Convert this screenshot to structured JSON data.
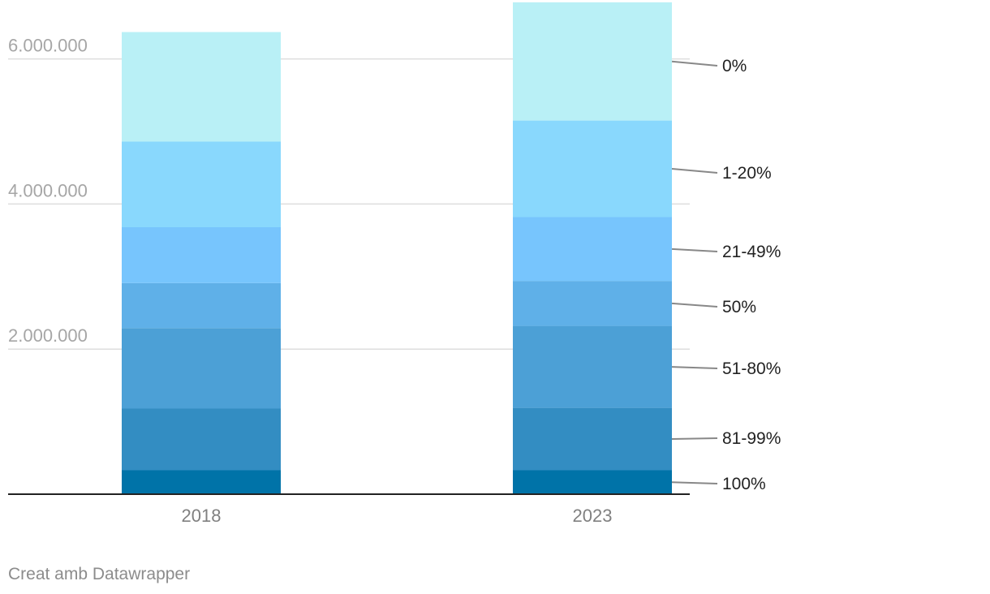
{
  "chart_data": {
    "type": "bar",
    "stacked": true,
    "categories": [
      "2018",
      "2023"
    ],
    "series": [
      {
        "name": "100%",
        "color": "#0073a8",
        "values": [
          330000,
          330000
        ]
      },
      {
        "name": "81-99%",
        "color": "#338dc2",
        "values": [
          850000,
          860000
        ]
      },
      {
        "name": "51-80%",
        "color": "#4ca0d6",
        "values": [
          1110000,
          1130000
        ]
      },
      {
        "name": "50%",
        "color": "#5fb0e8",
        "values": [
          620000,
          620000
        ]
      },
      {
        "name": "21-49%",
        "color": "#77c5fd",
        "values": [
          770000,
          880000
        ]
      },
      {
        "name": "1-20%",
        "color": "#89d8fd",
        "values": [
          1180000,
          1330000
        ]
      },
      {
        "name": "0%",
        "color": "#b9f0f6",
        "values": [
          1510000,
          1630000
        ]
      }
    ],
    "yticks": [
      "2.000.000",
      "4.000.000",
      "6.000.000"
    ],
    "ytick_values": [
      2000000,
      4000000,
      6000000
    ],
    "ylim": [
      0,
      6700000
    ],
    "grid": true,
    "legend": "right-labels"
  },
  "credit": "Creat amb Datawrapper"
}
